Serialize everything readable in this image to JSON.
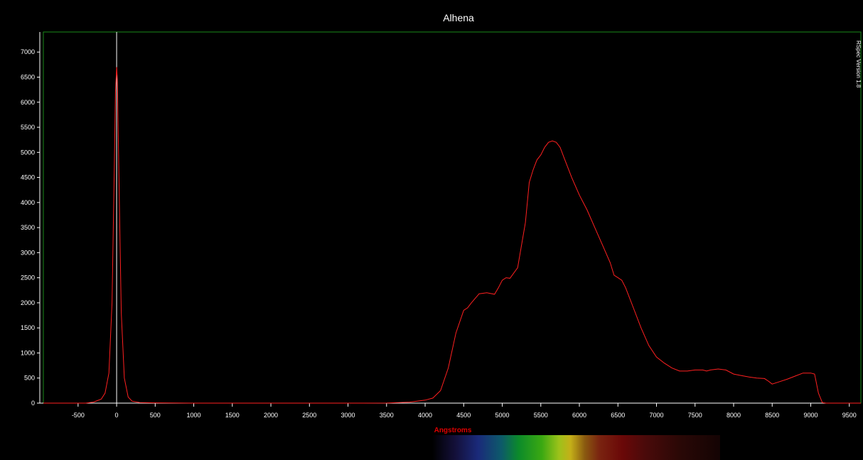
{
  "chart_data": {
    "type": "line",
    "title": "Alhena",
    "xlabel": "Angstroms",
    "ylabel": "",
    "xlim": [
      -950,
      9650
    ],
    "ylim": [
      0,
      7400
    ],
    "xticks": [
      -500,
      0,
      500,
      1000,
      1500,
      2000,
      2500,
      3000,
      3500,
      4000,
      4500,
      5000,
      5500,
      6000,
      6500,
      7000,
      7500,
      8000,
      8500,
      9000,
      9500
    ],
    "yticks": [
      0,
      500,
      1000,
      1500,
      2000,
      2500,
      3000,
      3500,
      4000,
      4500,
      5000,
      5500,
      6000,
      6500,
      7000
    ],
    "marker_x": 0,
    "side_text": "RSpec Version 1.8",
    "colors": {
      "line": "#ff2020",
      "frame": "#1a8a1a",
      "marker": "#ffffff"
    },
    "series": [
      {
        "name": "",
        "x": [
          -950,
          -400,
          -300,
          -200,
          -150,
          -100,
          -60,
          -30,
          -15,
          0,
          10,
          30,
          60,
          100,
          150,
          200,
          300,
          500,
          1000,
          2000,
          3000,
          3500,
          3800,
          4000,
          4100,
          4200,
          4300,
          4400,
          4500,
          4550,
          4600,
          4700,
          4800,
          4900,
          4950,
          5000,
          5050,
          5100,
          5200,
          5300,
          5350,
          5400,
          5450,
          5500,
          5550,
          5600,
          5650,
          5700,
          5750,
          5800,
          5900,
          6000,
          6100,
          6200,
          6300,
          6400,
          6450,
          6500,
          6550,
          6600,
          6700,
          6800,
          6900,
          7000,
          7100,
          7200,
          7300,
          7400,
          7500,
          7600,
          7650,
          7700,
          7800,
          7900,
          8000,
          8100,
          8200,
          8300,
          8400,
          8450,
          8500,
          8600,
          8700,
          8800,
          8900,
          9000,
          9050,
          9100,
          9150,
          9200,
          9650
        ],
        "y": [
          0,
          0,
          20,
          80,
          200,
          600,
          2000,
          4700,
          6200,
          6700,
          6400,
          4500,
          1800,
          500,
          120,
          40,
          10,
          5,
          0,
          0,
          0,
          2,
          20,
          60,
          100,
          250,
          700,
          1400,
          1850,
          1900,
          2000,
          2180,
          2200,
          2170,
          2300,
          2450,
          2500,
          2490,
          2700,
          3600,
          4400,
          4650,
          4850,
          4950,
          5100,
          5200,
          5230,
          5200,
          5100,
          4900,
          4500,
          4150,
          3850,
          3500,
          3150,
          2800,
          2550,
          2500,
          2450,
          2300,
          1900,
          1500,
          1150,
          920,
          800,
          700,
          640,
          640,
          660,
          660,
          640,
          660,
          680,
          660,
          580,
          550,
          520,
          500,
          490,
          440,
          380,
          430,
          480,
          540,
          600,
          600,
          580,
          200,
          10,
          0,
          0
        ]
      }
    ]
  }
}
